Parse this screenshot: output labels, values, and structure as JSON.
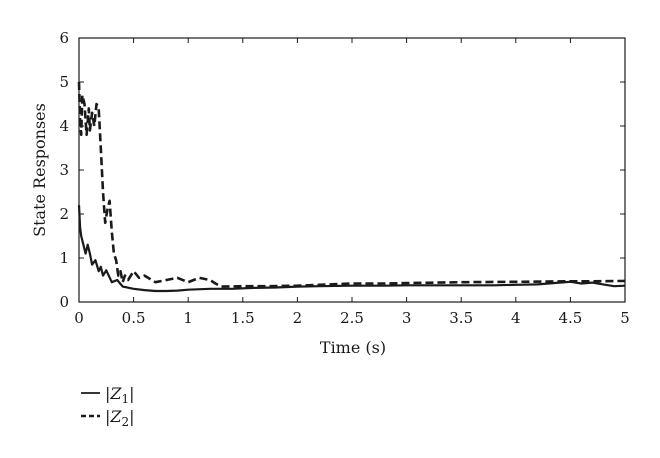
{
  "chart_data": {
    "type": "line",
    "title": "",
    "xlabel": "Time (s)",
    "ylabel": "State Responses",
    "xlim": [
      0,
      5
    ],
    "ylim": [
      0,
      6
    ],
    "xticks": [
      "0",
      "0.5",
      "1",
      "1.5",
      "2",
      "2.5",
      "3",
      "3.5",
      "4",
      "4.5",
      "5"
    ],
    "yticks": [
      "0",
      "1",
      "2",
      "3",
      "4",
      "5",
      "6"
    ],
    "grid": false,
    "legend_position": "below-left",
    "series": [
      {
        "name": "|Z1|",
        "legend_parts": {
          "pre": "|",
          "var": "Z",
          "sub": "1",
          "post": "|"
        },
        "style": "solid",
        "color": "#1a1a1a",
        "x": [
          0,
          0.01,
          0.02,
          0.04,
          0.06,
          0.08,
          0.1,
          0.12,
          0.15,
          0.18,
          0.2,
          0.22,
          0.25,
          0.3,
          0.35,
          0.4,
          0.5,
          0.6,
          0.7,
          0.8,
          0.9,
          1.0,
          1.2,
          1.4,
          1.6,
          1.8,
          2.0,
          2.2,
          2.5,
          2.8,
          3.0,
          3.2,
          3.5,
          3.8,
          4.0,
          4.2,
          4.4,
          4.5,
          4.6,
          4.7,
          4.8,
          4.9,
          5.0
        ],
        "y": [
          2.2,
          1.7,
          1.5,
          1.3,
          1.1,
          1.3,
          1.1,
          0.85,
          0.95,
          0.7,
          0.8,
          0.6,
          0.72,
          0.45,
          0.5,
          0.35,
          0.3,
          0.27,
          0.25,
          0.25,
          0.26,
          0.28,
          0.3,
          0.3,
          0.32,
          0.33,
          0.35,
          0.36,
          0.37,
          0.37,
          0.38,
          0.38,
          0.38,
          0.38,
          0.39,
          0.4,
          0.44,
          0.46,
          0.42,
          0.44,
          0.4,
          0.36,
          0.37
        ]
      },
      {
        "name": "|Z2|",
        "legend_parts": {
          "pre": "|",
          "var": "Z",
          "sub": "2",
          "post": "|"
        },
        "style": "dashed",
        "color": "#1a1a1a",
        "x": [
          0,
          0.01,
          0.02,
          0.03,
          0.05,
          0.07,
          0.09,
          0.1,
          0.12,
          0.14,
          0.16,
          0.18,
          0.2,
          0.22,
          0.24,
          0.26,
          0.28,
          0.3,
          0.32,
          0.34,
          0.36,
          0.38,
          0.4,
          0.42,
          0.45,
          0.5,
          0.55,
          0.6,
          0.7,
          0.8,
          0.9,
          1.0,
          1.1,
          1.2,
          1.25,
          1.3,
          1.5,
          1.7,
          2.0,
          2.3,
          2.5,
          2.8,
          3.0,
          3.5,
          4.0,
          4.5,
          4.7,
          5.0
        ],
        "y": [
          5.0,
          4.1,
          3.8,
          4.7,
          4.5,
          3.8,
          4.4,
          3.9,
          4.3,
          4.0,
          4.5,
          4.4,
          3.5,
          2.5,
          1.8,
          2.1,
          2.3,
          1.6,
          1.1,
          0.95,
          0.6,
          0.7,
          0.45,
          0.6,
          0.5,
          0.7,
          0.55,
          0.6,
          0.45,
          0.5,
          0.55,
          0.45,
          0.55,
          0.5,
          0.42,
          0.35,
          0.36,
          0.36,
          0.37,
          0.4,
          0.42,
          0.42,
          0.43,
          0.45,
          0.46,
          0.47,
          0.47,
          0.48
        ]
      }
    ]
  }
}
